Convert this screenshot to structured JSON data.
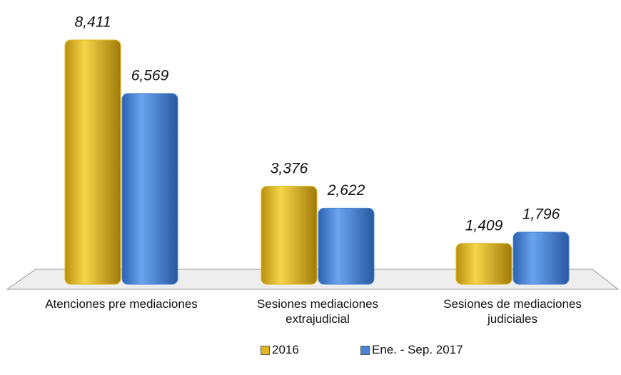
{
  "chart_data": {
    "type": "bar",
    "categories": [
      "Atenciones pre mediaciones",
      "Sesiones mediaciones extrajudicial",
      "Sesiones de mediaciones judiciales"
    ],
    "series": [
      {
        "name": "2016",
        "color": "#e3b51e",
        "values": [
          8411,
          3376,
          1409
        ],
        "value_labels": [
          "8,411",
          "3,376",
          "1,409"
        ]
      },
      {
        "name": "Ene. -  Sep. 2017",
        "color": "#4a86d6",
        "values": [
          6569,
          2622,
          1796
        ],
        "value_labels": [
          "6,569",
          "2,622",
          "1,796"
        ]
      }
    ],
    "legend": "bottom"
  }
}
